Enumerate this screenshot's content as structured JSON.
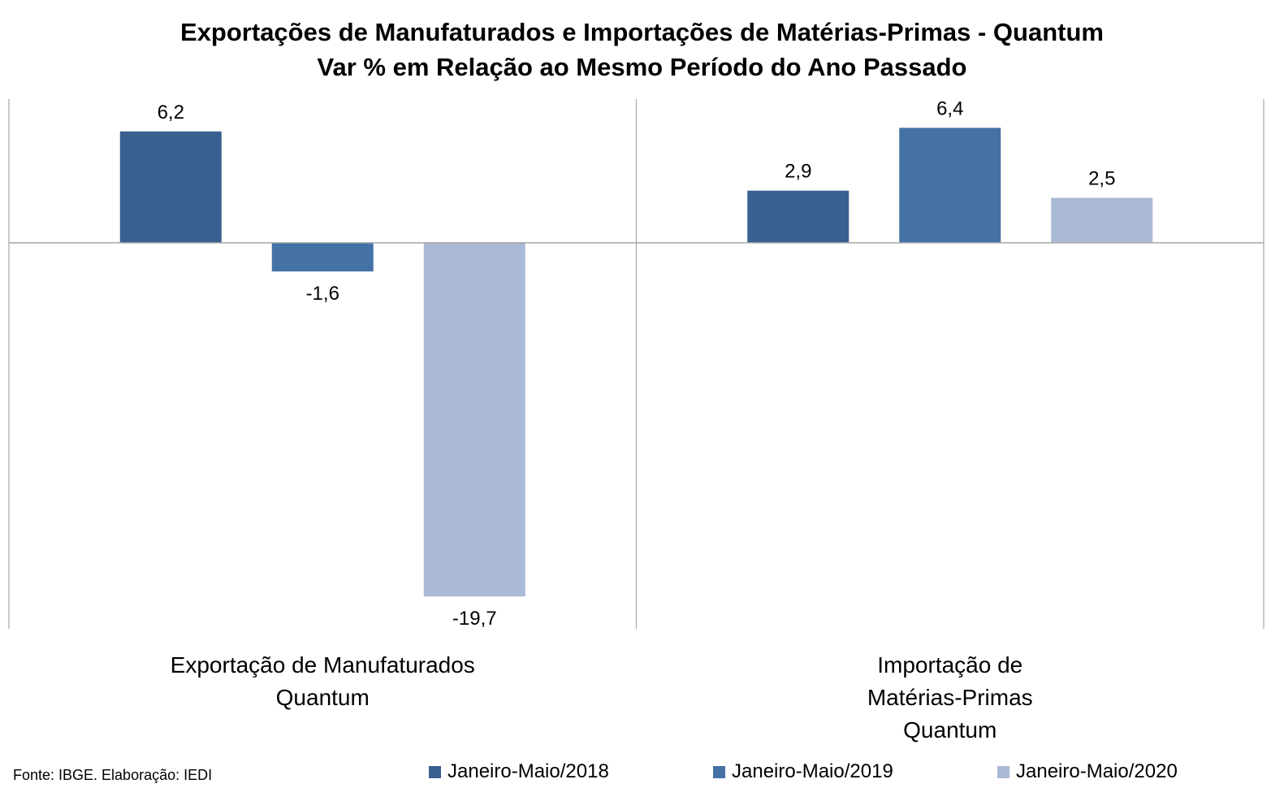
{
  "chart_data": {
    "type": "bar",
    "title": "Exportações de Manufaturados e Importações de Matérias-Primas - Quantum",
    "subtitle": "Var % em Relação ao Mesmo Período do Ano Passado",
    "categories": [
      [
        "Exportação de Manufaturados",
        "Quantum"
      ],
      [
        "Importação de",
        "Matérias-Primas",
        "Quantum"
      ]
    ],
    "series": [
      {
        "name": "Janeiro-Maio/2018",
        "color": "#3A5F91",
        "values": [
          6.2,
          2.9
        ],
        "labels": [
          "6,2",
          "2,9"
        ]
      },
      {
        "name": "Janeiro-Maio/2019",
        "color": "#4472A6",
        "values": [
          -1.6,
          6.4
        ],
        "labels": [
          "-1,6",
          "6,4"
        ]
      },
      {
        "name": "Janeiro-Maio/2020",
        "color": "#A9B9D6",
        "values": [
          -19.7,
          2.5
        ],
        "labels": [
          "-19,7",
          "2,5"
        ]
      }
    ],
    "ylim": [
      -21.5,
      8.0
    ],
    "grid": false,
    "legend_position": "bottom"
  },
  "source": "Fonte: IBGE. Elaboração: IEDI"
}
